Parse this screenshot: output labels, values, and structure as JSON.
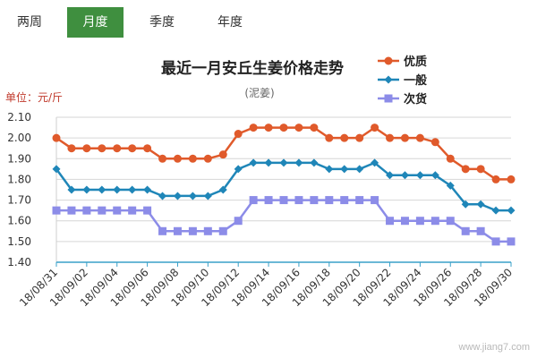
{
  "tabs": [
    {
      "label": "两周",
      "active": false
    },
    {
      "label": "月度",
      "active": true
    },
    {
      "label": "季度",
      "active": false
    },
    {
      "label": "年度",
      "active": false
    }
  ],
  "colors": {
    "accent": "#3f8f3f",
    "axis": "#3aa0c8",
    "unit_text": "#c0392b"
  },
  "watermark": "www.jiang7.com",
  "chart_data": {
    "type": "line",
    "title": "最近一月安丘生姜价格走势",
    "subtitle": "(泥姜)",
    "ylabel": "单位：元/斤",
    "ylim": [
      1.4,
      2.1
    ],
    "yticks": [
      "1.40",
      "1.50",
      "1.60",
      "1.70",
      "1.80",
      "1.90",
      "2.00",
      "2.10"
    ],
    "x": [
      "18/08/31",
      "18/09/01",
      "18/09/02",
      "18/09/03",
      "18/09/04",
      "18/09/05",
      "18/09/06",
      "18/09/07",
      "18/09/08",
      "18/09/09",
      "18/09/10",
      "18/09/11",
      "18/09/12",
      "18/09/13",
      "18/09/14",
      "18/09/15",
      "18/09/16",
      "18/09/17",
      "18/09/18",
      "18/09/19",
      "18/09/20",
      "18/09/21",
      "18/09/22",
      "18/09/23",
      "18/09/24",
      "18/09/25",
      "18/09/26",
      "18/09/27",
      "18/09/28",
      "18/09/29",
      "18/09/30"
    ],
    "xtick_labels": [
      "18/08/31",
      "18/09/02",
      "18/09/04",
      "18/09/06",
      "18/09/08",
      "18/09/10",
      "18/09/12",
      "18/09/14",
      "18/09/16",
      "18/09/18",
      "18/09/20",
      "18/09/22",
      "18/09/24",
      "18/09/26",
      "18/09/28",
      "18/09/30"
    ],
    "grid": true,
    "legend_position": "top-right",
    "series": [
      {
        "name": "优质",
        "color": "#e05a2b",
        "marker": "circle",
        "values": [
          2.0,
          1.95,
          1.95,
          1.95,
          1.95,
          1.95,
          1.95,
          1.9,
          1.9,
          1.9,
          1.9,
          1.92,
          2.02,
          2.05,
          2.05,
          2.05,
          2.05,
          2.05,
          2.0,
          2.0,
          2.0,
          2.05,
          2.0,
          2.0,
          2.0,
          1.98,
          1.9,
          1.85,
          1.85,
          1.8,
          1.8
        ]
      },
      {
        "name": "一般",
        "color": "#1f86b8",
        "marker": "diamond",
        "values": [
          1.85,
          1.75,
          1.75,
          1.75,
          1.75,
          1.75,
          1.75,
          1.72,
          1.72,
          1.72,
          1.72,
          1.75,
          1.85,
          1.88,
          1.88,
          1.88,
          1.88,
          1.88,
          1.85,
          1.85,
          1.85,
          1.88,
          1.82,
          1.82,
          1.82,
          1.82,
          1.77,
          1.68,
          1.68,
          1.65,
          1.65
        ]
      },
      {
        "name": "次货",
        "color": "#8c8ce8",
        "marker": "square",
        "values": [
          1.65,
          1.65,
          1.65,
          1.65,
          1.65,
          1.65,
          1.65,
          1.55,
          1.55,
          1.55,
          1.55,
          1.55,
          1.6,
          1.7,
          1.7,
          1.7,
          1.7,
          1.7,
          1.7,
          1.7,
          1.7,
          1.7,
          1.6,
          1.6,
          1.6,
          1.6,
          1.6,
          1.55,
          1.55,
          1.5,
          1.5
        ]
      }
    ]
  }
}
